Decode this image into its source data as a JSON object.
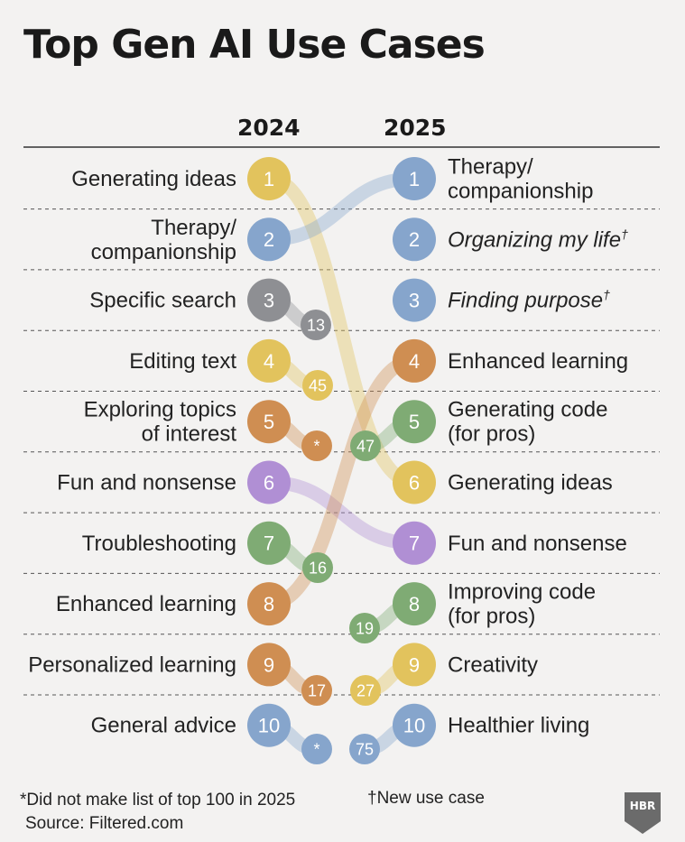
{
  "title": "Top Gen AI Use Cases",
  "chart_data": {
    "type": "bump",
    "year_left": "2024",
    "year_right": "2025",
    "left": [
      {
        "rank": 1,
        "label": "Generating ideas",
        "color": "#e2c35d",
        "rank2025": "6"
      },
      {
        "rank": 2,
        "label": "Therapy/\ncompanionship",
        "color": "#86a5cc",
        "rank2025": "1"
      },
      {
        "rank": 3,
        "label": "Specific search",
        "color": "#8e8f93",
        "rank2025": "13"
      },
      {
        "rank": 4,
        "label": "Editing text",
        "color": "#e2c35d",
        "rank2025": "45"
      },
      {
        "rank": 5,
        "label": "Exploring topics\nof interest",
        "color": "#cf8e52",
        "rank2025": "*"
      },
      {
        "rank": 6,
        "label": "Fun and nonsense",
        "color": "#b08fd4",
        "rank2025": "7"
      },
      {
        "rank": 7,
        "label": "Troubleshooting",
        "color": "#7fab74",
        "rank2025": "16"
      },
      {
        "rank": 8,
        "label": "Enhanced learning",
        "color": "#cf8e52",
        "rank2025": "4"
      },
      {
        "rank": 9,
        "label": "Personalized learning",
        "color": "#cf8e52",
        "rank2025": "17"
      },
      {
        "rank": 10,
        "label": "General advice",
        "color": "#86a5cc",
        "rank2025": "*"
      }
    ],
    "right": [
      {
        "rank": 1,
        "label": "Therapy/\ncompanionship",
        "color": "#86a5cc",
        "italic": false,
        "new": false,
        "rank2024": "2"
      },
      {
        "rank": 2,
        "label": "Organizing my life",
        "color": "#86a5cc",
        "italic": true,
        "new": true,
        "rank2024": ""
      },
      {
        "rank": 3,
        "label": "Finding purpose",
        "color": "#86a5cc",
        "italic": true,
        "new": true,
        "rank2024": ""
      },
      {
        "rank": 4,
        "label": "Enhanced learning",
        "color": "#cf8e52",
        "italic": false,
        "new": false,
        "rank2024": "8"
      },
      {
        "rank": 5,
        "label": "Generating code\n(for pros)",
        "color": "#7fab74",
        "italic": false,
        "new": false,
        "rank2024": "47"
      },
      {
        "rank": 6,
        "label": "Generating ideas",
        "color": "#e2c35d",
        "italic": false,
        "new": false,
        "rank2024": "1"
      },
      {
        "rank": 7,
        "label": "Fun and nonsense",
        "color": "#b08fd4",
        "italic": false,
        "new": false,
        "rank2024": "6"
      },
      {
        "rank": 8,
        "label": "Improving code\n(for pros)",
        "color": "#7fab74",
        "italic": false,
        "new": false,
        "rank2024": "19"
      },
      {
        "rank": 9,
        "label": "Creativity",
        "color": "#e2c35d",
        "italic": false,
        "new": false,
        "rank2024": "27"
      },
      {
        "rank": 10,
        "label": "Healthier living",
        "color": "#86a5cc",
        "italic": false,
        "new": false,
        "rank2024": "75"
      }
    ],
    "dagger": "†"
  },
  "footnote_star": "*Did not make list of top 100 in 2025",
  "footnote_source": "Source: Filtered.com",
  "footnote_dagger": "†New use case",
  "logo_text": "HBR"
}
